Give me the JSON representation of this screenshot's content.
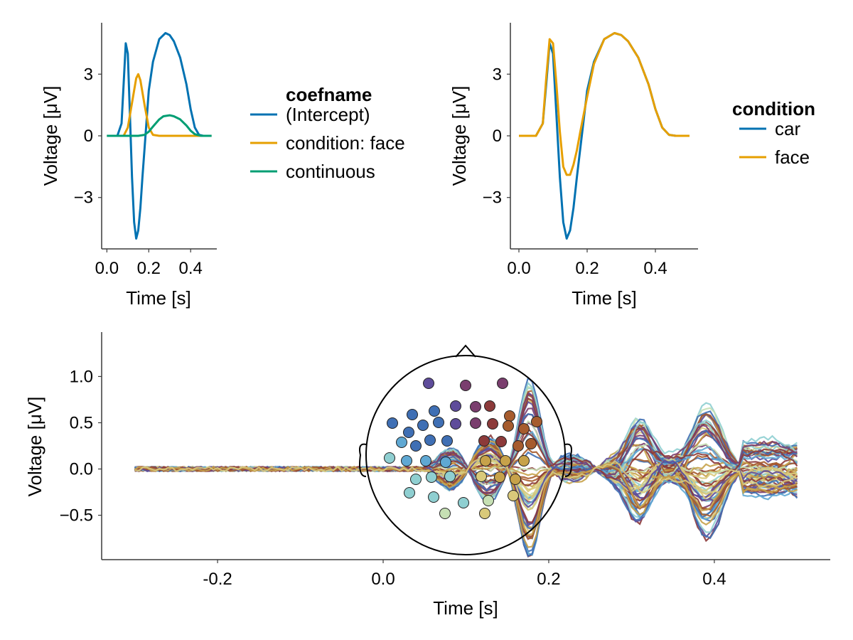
{
  "chart_data": [
    {
      "type": "line",
      "xlabel": "Time [s]",
      "ylabel": "Voltage [μV]",
      "xticks": [
        "0.0",
        "0.2",
        "0.4"
      ],
      "xtick_values": [
        0.0,
        0.2,
        0.4
      ],
      "yticks": [
        "−3",
        "0",
        "3"
      ],
      "ytick_values": [
        -3,
        0,
        3
      ],
      "xlim": [
        -0.025,
        0.525
      ],
      "ylim": [
        -5.5,
        5.5
      ],
      "legend_title": "coefname",
      "legend_position": "right",
      "grid": false,
      "series": [
        {
          "name": "(Intercept)",
          "color": "#0072b2",
          "x": [
            0.0,
            0.05,
            0.07,
            0.08,
            0.09,
            0.1,
            0.11,
            0.12,
            0.13,
            0.14,
            0.15,
            0.16,
            0.17,
            0.18,
            0.2,
            0.22,
            0.25,
            0.28,
            0.3,
            0.32,
            0.35,
            0.38,
            0.4,
            0.42,
            0.44,
            0.46,
            0.5
          ],
          "y": [
            0,
            0,
            0.6,
            2.5,
            4.5,
            4.0,
            1.0,
            -2.0,
            -4.2,
            -5.0,
            -4.6,
            -3.5,
            -2.0,
            -0.6,
            2.2,
            3.6,
            4.7,
            5.0,
            4.9,
            4.6,
            3.8,
            2.5,
            1.3,
            0.4,
            0.05,
            0,
            0
          ]
        },
        {
          "name": "condition: face",
          "color": "#e69f00",
          "x": [
            0.0,
            0.08,
            0.1,
            0.12,
            0.14,
            0.15,
            0.16,
            0.18,
            0.2,
            0.22,
            0.25,
            0.5
          ],
          "y": [
            0,
            0,
            0.4,
            1.6,
            2.8,
            3.0,
            2.7,
            1.5,
            0.4,
            0.05,
            0,
            0
          ]
        },
        {
          "name": "continuous",
          "color": "#009e73",
          "x": [
            0.0,
            0.15,
            0.18,
            0.2,
            0.22,
            0.25,
            0.27,
            0.3,
            0.32,
            0.35,
            0.38,
            0.4,
            0.42,
            0.45,
            0.5
          ],
          "y": [
            0,
            0,
            0.05,
            0.2,
            0.45,
            0.8,
            0.95,
            1.0,
            0.95,
            0.8,
            0.5,
            0.25,
            0.08,
            0,
            0
          ]
        }
      ]
    },
    {
      "type": "line",
      "xlabel": "Time [s]",
      "ylabel": "Voltage [μV]",
      "xticks": [
        "0.0",
        "0.2",
        "0.4"
      ],
      "xtick_values": [
        0.0,
        0.2,
        0.4
      ],
      "yticks": [
        "−3",
        "0",
        "3"
      ],
      "ytick_values": [
        -3,
        0,
        3
      ],
      "xlim": [
        -0.025,
        0.525
      ],
      "ylim": [
        -5.5,
        5.5
      ],
      "legend_title": "condition",
      "legend_position": "right",
      "grid": false,
      "series": [
        {
          "name": "car",
          "color": "#0072b2",
          "x": [
            0.0,
            0.05,
            0.07,
            0.08,
            0.09,
            0.1,
            0.11,
            0.12,
            0.13,
            0.14,
            0.15,
            0.16,
            0.17,
            0.18,
            0.2,
            0.22,
            0.25,
            0.28,
            0.3,
            0.32,
            0.35,
            0.38,
            0.4,
            0.42,
            0.44,
            0.46,
            0.5
          ],
          "y": [
            0,
            0,
            0.6,
            2.5,
            4.5,
            4.0,
            1.0,
            -2.0,
            -4.2,
            -5.0,
            -4.6,
            -3.5,
            -2.0,
            -0.6,
            2.2,
            3.6,
            4.7,
            5.0,
            4.9,
            4.6,
            3.8,
            2.5,
            1.3,
            0.4,
            0.05,
            0,
            0
          ]
        },
        {
          "name": "face",
          "color": "#e69f00",
          "x": [
            0.0,
            0.05,
            0.07,
            0.08,
            0.09,
            0.1,
            0.11,
            0.12,
            0.13,
            0.14,
            0.15,
            0.16,
            0.17,
            0.18,
            0.2,
            0.22,
            0.25,
            0.28,
            0.3,
            0.32,
            0.35,
            0.38,
            0.4,
            0.42,
            0.44,
            0.46,
            0.5
          ],
          "y": [
            0,
            0,
            0.6,
            2.8,
            4.7,
            4.5,
            2.5,
            0.2,
            -1.5,
            -1.9,
            -1.9,
            -1.4,
            -0.7,
            0.2,
            1.9,
            3.5,
            4.7,
            5.0,
            4.9,
            4.6,
            3.8,
            2.5,
            1.3,
            0.4,
            0.05,
            0,
            0
          ]
        }
      ]
    },
    {
      "type": "line",
      "xlabel": "Time [s]",
      "ylabel": "Voltage [μV]",
      "xticks": [
        "-0.2",
        "0.0",
        "0.2",
        "0.4"
      ],
      "xtick_values": [
        -0.2,
        0.0,
        0.2,
        0.4
      ],
      "yticks": [
        "−0.5",
        "0.0",
        "0.5",
        "1.0"
      ],
      "ytick_values": [
        -0.5,
        0.0,
        0.5,
        1.0
      ],
      "xlim": [
        -0.34,
        0.54
      ],
      "ylim": [
        -0.98,
        1.48
      ],
      "grid": false,
      "butterfly_channels": 64,
      "inset": "topographic electrode map (head outline with colored channel positions)",
      "colors": [
        "#8c3a3a",
        "#a65c2e",
        "#c7a24a",
        "#d9c97a",
        "#c6e0b4",
        "#8fcfd1",
        "#5fa8d3",
        "#3f6fb4",
        "#5e4c9a",
        "#7a3e6e"
      ]
    }
  ]
}
